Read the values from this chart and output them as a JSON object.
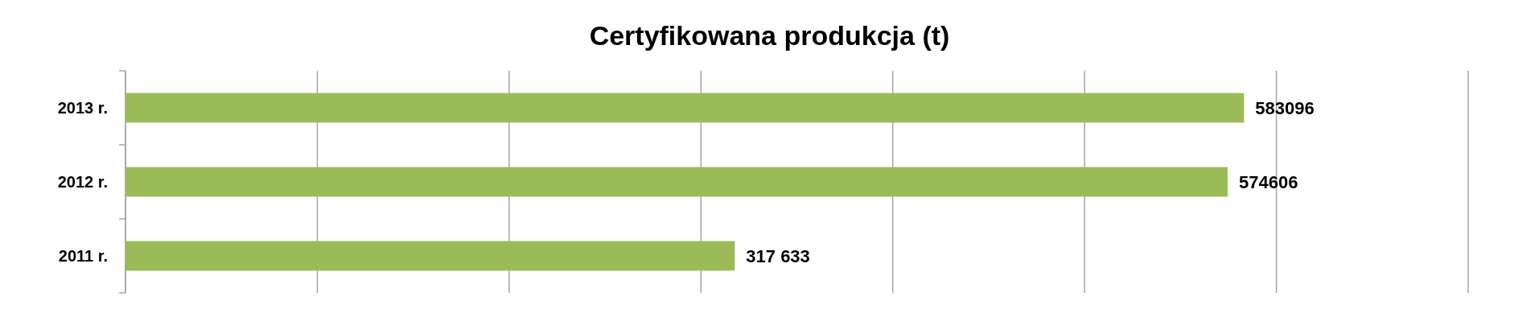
{
  "chart_data": {
    "type": "bar",
    "orientation": "horizontal",
    "title": "Certyfikowana produkcja (t)",
    "categories": [
      "2013 r.",
      "2012 r.",
      "2011 r."
    ],
    "values": [
      583096,
      574606,
      317633
    ],
    "value_labels": [
      "583096",
      "574606",
      "317 633"
    ],
    "color": "#9bbb59",
    "xlim": [
      0,
      700000
    ],
    "xticks": [
      {
        "value": 0,
        "label": null
      },
      {
        "value": 100000,
        "label": null
      },
      {
        "value": 200000,
        "label": null
      },
      {
        "value": 300000,
        "label": null
      },
      {
        "value": 400000,
        "label": null
      },
      {
        "value": 500000,
        "label": null
      },
      {
        "value": 600000,
        "label": null
      },
      {
        "value": 700000,
        "label": null
      }
    ],
    "tick_labels": "y",
    "grid": "x"
  }
}
